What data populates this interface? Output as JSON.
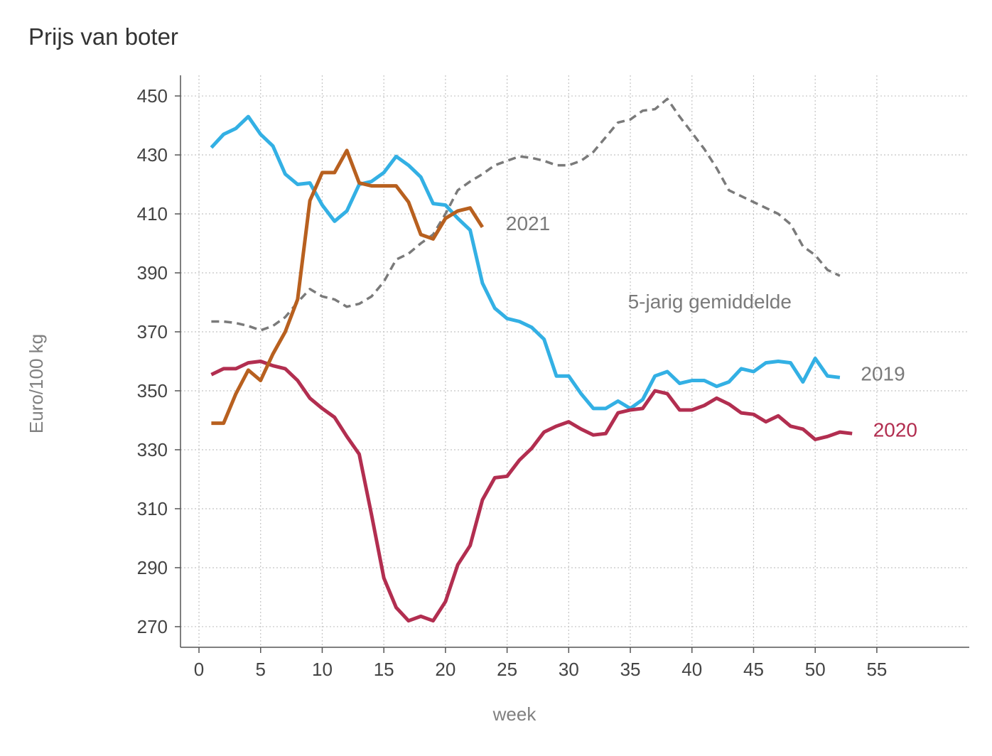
{
  "chart_data": {
    "type": "line",
    "title": "Prijs van boter",
    "xlabel": "week",
    "ylabel": "Euro/100 kg",
    "xlim": [
      -1.5,
      62.5
    ],
    "ylim": [
      263,
      457
    ],
    "xticks": [
      0,
      5,
      10,
      15,
      20,
      25,
      30,
      35,
      40,
      45,
      50,
      55
    ],
    "yticks": [
      270,
      290,
      310,
      330,
      350,
      370,
      390,
      410,
      430,
      450
    ],
    "grid": true,
    "series": [
      {
        "name": "5-jarig gemiddelde",
        "color": "#7a7a7a",
        "style": "dashed",
        "x": [
          1,
          2,
          3,
          4,
          5,
          6,
          7,
          8,
          9,
          10,
          11,
          12,
          13,
          14,
          15,
          16,
          17,
          18,
          19,
          20,
          21,
          22,
          23,
          24,
          25,
          26,
          27,
          28,
          29,
          30,
          31,
          32,
          33,
          34,
          35,
          36,
          37,
          38,
          39,
          40,
          41,
          42,
          43,
          44,
          45,
          46,
          47,
          48,
          49,
          50,
          51,
          52
        ],
        "values": [
          373.5,
          373.5,
          373,
          372,
          370.5,
          372,
          375,
          380,
          384.5,
          382,
          381,
          378.5,
          379.5,
          382,
          387,
          394.5,
          396.5,
          400,
          403,
          410,
          418,
          421,
          423.5,
          426.5,
          428,
          429.5,
          429,
          428,
          426.5,
          426.5,
          428,
          431,
          436,
          441,
          442,
          445,
          445.5,
          449,
          443,
          437.5,
          432,
          425.5,
          418,
          416,
          414,
          412,
          410,
          406.5,
          399,
          396,
          391,
          389
        ]
      },
      {
        "name": "2019",
        "color": "#33b0e4",
        "style": "solid",
        "x": [
          1,
          2,
          3,
          4,
          5,
          6,
          7,
          8,
          9,
          10,
          11,
          12,
          13,
          14,
          15,
          16,
          17,
          18,
          19,
          20,
          21,
          22,
          23,
          24,
          25,
          26,
          27,
          28,
          29,
          30,
          31,
          32,
          33,
          34,
          35,
          36,
          37,
          38,
          39,
          40,
          41,
          42,
          43,
          44,
          45,
          46,
          47,
          48,
          49,
          50,
          51,
          52
        ],
        "values": [
          432.5,
          437,
          439,
          443,
          437,
          433,
          423.5,
          420,
          420.5,
          413,
          407.5,
          411,
          420,
          421,
          424,
          429.5,
          426.5,
          422.5,
          413.5,
          413,
          408.5,
          404.5,
          386.5,
          378,
          374.5,
          373.5,
          371.5,
          367.5,
          355,
          355,
          349,
          344,
          344,
          346.5,
          344,
          347,
          355,
          356.5,
          352.5,
          353.5,
          353.5,
          351.5,
          353,
          357.5,
          356.5,
          359.5,
          360,
          359.5,
          353,
          361,
          355,
          354.5
        ]
      },
      {
        "name": "2020",
        "color": "#b22e50",
        "style": "solid",
        "x": [
          1,
          2,
          3,
          4,
          5,
          6,
          7,
          8,
          9,
          10,
          11,
          12,
          13,
          14,
          15,
          16,
          17,
          18,
          19,
          20,
          21,
          22,
          23,
          24,
          25,
          26,
          27,
          28,
          29,
          30,
          31,
          32,
          33,
          34,
          35,
          36,
          37,
          38,
          39,
          40,
          41,
          42,
          43,
          44,
          45,
          46,
          47,
          48,
          49,
          50,
          51,
          52,
          53
        ],
        "values": [
          355.5,
          357.5,
          357.5,
          359.5,
          360,
          358.5,
          357.5,
          353.5,
          347.5,
          344,
          341,
          334.5,
          328.5,
          308,
          286.5,
          276.5,
          272,
          273.5,
          272,
          278.5,
          291,
          297.5,
          313,
          320.5,
          321,
          326.5,
          330.5,
          336,
          338,
          339.5,
          337,
          335,
          335.5,
          342.5,
          343.5,
          344,
          350,
          349,
          343.5,
          343.5,
          345,
          347.5,
          345.5,
          342.5,
          342,
          339.5,
          341.5,
          338,
          337,
          333.5,
          334.5,
          336,
          335.5
        ]
      },
      {
        "name": "2021",
        "color": "#b8601f",
        "style": "solid",
        "x": [
          1,
          2,
          3,
          4,
          5,
          6,
          7,
          8,
          9,
          10,
          11,
          12,
          13,
          14,
          15,
          16,
          17,
          18,
          19,
          20,
          21,
          22,
          23
        ],
        "values": [
          339,
          339,
          349,
          357,
          353.5,
          362.5,
          370,
          381,
          414.5,
          424,
          424,
          431.5,
          420.5,
          419.5,
          419.5,
          419.5,
          414,
          403,
          401.5,
          408.5,
          411,
          412,
          405.5
        ]
      }
    ],
    "annotations": [
      {
        "text": "2021",
        "x": 24.9,
        "y": 404.5,
        "color": "#7a7a7a"
      },
      {
        "text": "5-jarig gemiddelde",
        "x": 34.8,
        "y": 378,
        "color": "#7a7a7a"
      },
      {
        "text": "2019",
        "x": 53.7,
        "y": 353.5,
        "color": "#7a7a7a"
      },
      {
        "text": "2020",
        "x": 54.7,
        "y": 334.5,
        "color": "#b22e50"
      }
    ]
  }
}
